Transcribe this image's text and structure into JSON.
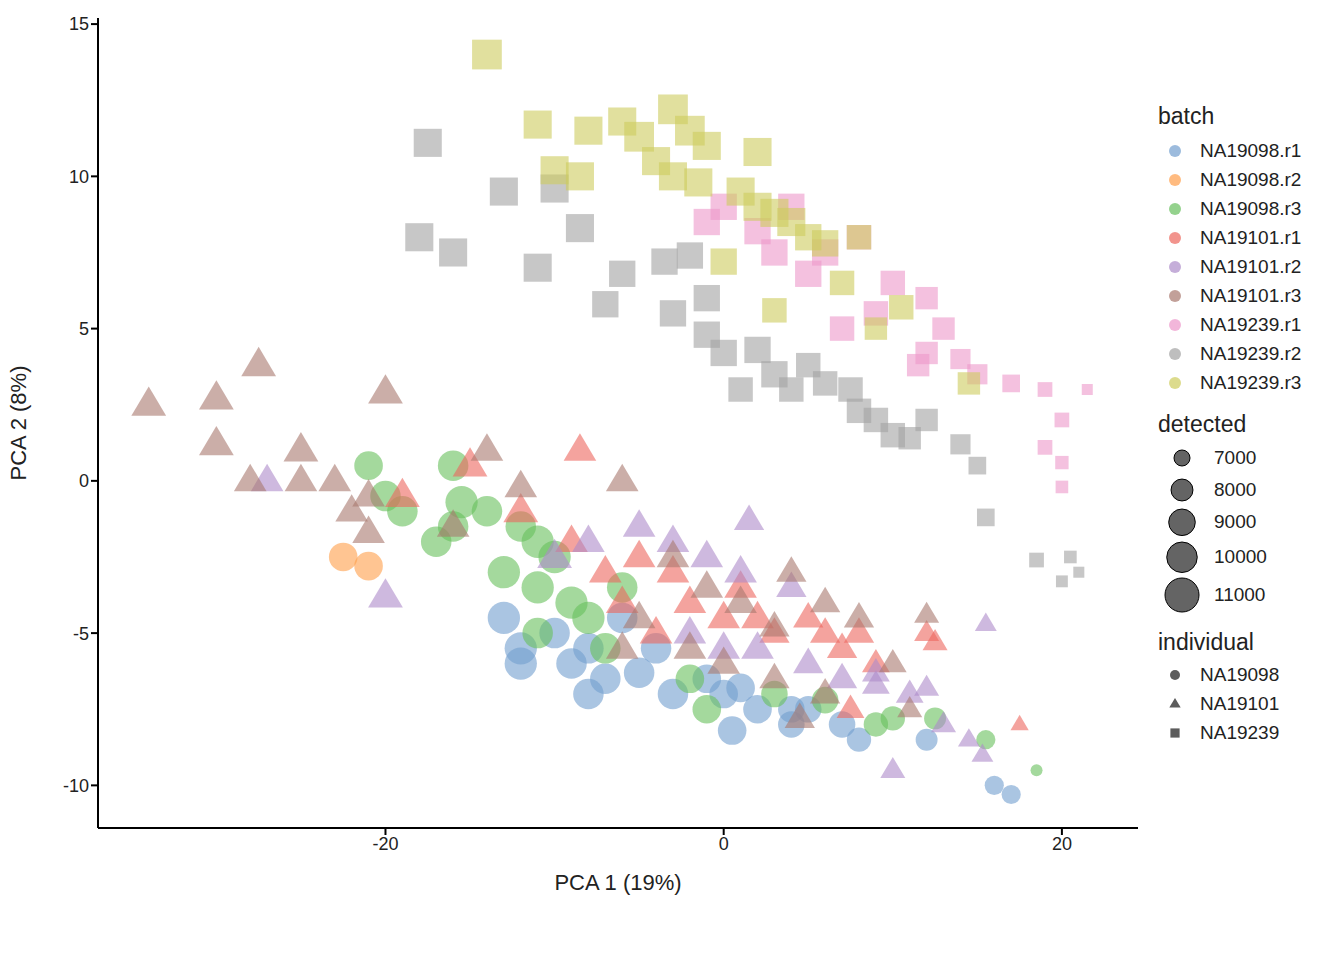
{
  "chart_data": {
    "type": "scatter",
    "x_label": "PCA 1 (19%)",
    "y_label": "PCA 2 (8%)",
    "xlim": [
      -37,
      24.5
    ],
    "ylim": [
      -11.4,
      15.2
    ],
    "xticks": [
      -20,
      0,
      20
    ],
    "yticks": [
      -10,
      -5,
      0,
      5,
      10,
      15
    ],
    "grid": false,
    "legend": "right",
    "legend_title": "batch",
    "series": [
      {
        "name": "NA19098.r1",
        "color": "#729ECE",
        "marker": "circle",
        "x": [
          -13,
          -12,
          -12,
          -10,
          -9,
          -8,
          -8,
          -7,
          -5,
          -3,
          -1,
          0,
          1,
          2,
          0.5,
          4,
          5,
          4,
          7,
          8,
          12,
          16,
          17,
          -6,
          -4
        ],
        "y": [
          -4.5,
          -5.5,
          -6,
          -5,
          -6,
          -5.5,
          -7,
          -6.5,
          -6.3,
          -7,
          -6.5,
          -7,
          -6.8,
          -7.5,
          -8.2,
          -7.5,
          -7.5,
          -8,
          -8,
          -8.5,
          -8.5,
          -10,
          -10.3,
          -4.5,
          -5.5
        ],
        "detected": [
          10500,
          10500,
          10500,
          10000,
          10000,
          10000,
          10000,
          10000,
          10000,
          10000,
          9500,
          9500,
          9500,
          9500,
          9500,
          9000,
          9000,
          9000,
          9000,
          8500,
          8000,
          7500,
          7500,
          10000,
          10000
        ]
      },
      {
        "name": "NA19098.r2",
        "color": "#FF9E4A",
        "marker": "circle",
        "x": [
          -22.5,
          -21
        ],
        "y": [
          -2.5,
          -2.8
        ],
        "detected": [
          9500,
          9500
        ]
      },
      {
        "name": "NA19098.r3",
        "color": "#67BF5C",
        "marker": "circle",
        "x": [
          -17,
          -19,
          -16,
          -16,
          -14,
          -12,
          -11,
          -10,
          -13,
          -11,
          -9,
          -8,
          -6,
          -11,
          -20,
          -15.5,
          -2,
          -1,
          3,
          6,
          9,
          10,
          12.5,
          15.5,
          18.5,
          -21,
          -7
        ],
        "y": [
          -2,
          -1,
          -1.5,
          0.5,
          -1,
          -1.5,
          -2,
          -2.5,
          -3,
          -3.5,
          -4,
          -4.5,
          -3.5,
          -5,
          -0.5,
          -0.7,
          -6.5,
          -7.5,
          -7,
          -7.2,
          -8,
          -7.8,
          -7.8,
          -8.5,
          -9.5,
          0.5,
          -5.5
        ],
        "detected": [
          10000,
          10000,
          10000,
          10000,
          10000,
          10000,
          10500,
          10500,
          10500,
          10500,
          10500,
          10500,
          10000,
          10000,
          10000,
          10500,
          9500,
          9500,
          9000,
          9000,
          8500,
          8500,
          8000,
          7500,
          6500,
          9500,
          10000
        ]
      },
      {
        "name": "NA19101.r1",
        "color": "#ED665D",
        "marker": "triangle",
        "x": [
          -8.5,
          -15,
          -12,
          -9,
          -7,
          -5,
          -3,
          -2,
          0,
          1,
          2,
          3,
          5,
          6,
          7,
          8,
          -4,
          -6,
          9,
          12,
          12.5,
          7.5,
          17.5,
          -19
        ],
        "y": [
          1,
          0.5,
          -1,
          -2,
          -3,
          -2.5,
          -3,
          -4,
          -4.5,
          -3.5,
          -4.5,
          -5,
          -4.5,
          -5,
          -5.5,
          -5,
          -5,
          -4,
          -6,
          -5,
          -5.3,
          -7.5,
          -8,
          -0.5
        ],
        "detected": [
          9500,
          10000,
          10000,
          9500,
          9500,
          9500,
          9500,
          9500,
          9500,
          9500,
          9500,
          9000,
          9000,
          9000,
          9000,
          9000,
          9500,
          9500,
          8500,
          8000,
          8000,
          8500,
          7000,
          10000
        ]
      },
      {
        "name": "NA19101.r2",
        "color": "#AD8BC9",
        "marker": "triangle",
        "x": [
          -27,
          -20,
          -5,
          -3,
          -1,
          1,
          4,
          -8,
          -2,
          0,
          2,
          5,
          7,
          9,
          11,
          12,
          15.5,
          13,
          14.5,
          15.3,
          10,
          9,
          -10,
          1.5
        ],
        "y": [
          0,
          -3.8,
          -1.5,
          -2,
          -2.5,
          -3,
          -3.5,
          -2,
          -5,
          -5.5,
          -5.5,
          -6,
          -6.5,
          -6.3,
          -7,
          -6.8,
          -4.7,
          -8,
          -8.5,
          -9,
          -9.5,
          -6.7,
          -2.5,
          -1.3
        ],
        "detected": [
          9500,
          10000,
          9500,
          9500,
          9500,
          9500,
          9000,
          9500,
          9500,
          9500,
          9500,
          9000,
          9000,
          8500,
          8500,
          8000,
          7500,
          8000,
          7500,
          7500,
          8000,
          8500,
          10000,
          9000
        ]
      },
      {
        "name": "NA19101.r3",
        "color": "#A8786E",
        "marker": "triangle",
        "x": [
          -34,
          -30,
          -27.5,
          -30,
          -20,
          -25,
          -28,
          -25,
          -23,
          -22,
          -21,
          -14,
          -12,
          -16,
          -6,
          -3,
          -1,
          1,
          3,
          4,
          6,
          8,
          -5,
          -2,
          0,
          3,
          6,
          10,
          12,
          11,
          -6,
          -21,
          4.5
        ],
        "y": [
          2.5,
          2.7,
          3.8,
          1.2,
          2.9,
          1,
          0,
          0,
          0,
          -1,
          -0.5,
          1,
          -0.2,
          -1.5,
          0,
          -2.5,
          -3.5,
          -4,
          -4.8,
          -3,
          -4,
          -4.5,
          -4.5,
          -5.5,
          -6,
          -6.5,
          -7,
          -6,
          -4.4,
          -7.5,
          -5.5,
          -1.7,
          -7.8
        ],
        "detected": [
          10000,
          10000,
          10000,
          10000,
          10000,
          10000,
          9500,
          9500,
          9500,
          9500,
          9500,
          9500,
          9500,
          9500,
          9500,
          9500,
          9500,
          9500,
          9000,
          9000,
          9000,
          9000,
          9500,
          9500,
          9500,
          9000,
          9000,
          8500,
          8000,
          8000,
          9500,
          9500,
          9000
        ]
      },
      {
        "name": "NA19239.r1",
        "color": "#ED97CA",
        "marker": "square",
        "x": [
          0,
          2,
          4,
          6,
          8,
          10,
          12,
          13,
          14,
          15,
          17,
          19,
          20,
          19,
          20,
          20,
          21.5,
          11.5,
          7,
          3,
          -1,
          9,
          12,
          5
        ],
        "y": [
          9,
          8.2,
          9,
          7.5,
          8,
          6.5,
          6,
          5,
          4,
          3.5,
          3.2,
          3,
          2,
          1.1,
          0.6,
          -0.2,
          3,
          3.8,
          5,
          7.5,
          8.5,
          5.5,
          4.2,
          6.8
        ],
        "detected": [
          9500,
          9500,
          9500,
          9500,
          9000,
          9000,
          8500,
          8500,
          8000,
          8000,
          7500,
          7000,
          7000,
          7000,
          6800,
          6700,
          6500,
          8500,
          9000,
          9500,
          9500,
          9000,
          8500,
          9500
        ]
      },
      {
        "name": "NA19239.r2",
        "color": "#A2A2A2",
        "marker": "square",
        "x": [
          -17.5,
          -13,
          -10,
          -8.5,
          -18,
          -16,
          -11,
          -6,
          -7,
          -2,
          -1,
          -3,
          -1,
          0,
          2,
          3,
          1,
          5,
          6,
          8,
          9,
          10,
          12,
          11,
          14,
          15,
          15.5,
          18.5,
          20.5,
          20,
          21,
          7.5,
          4,
          -3.5
        ],
        "y": [
          11.1,
          9.5,
          9.6,
          8.3,
          8,
          7.5,
          7,
          6.8,
          5.8,
          7.4,
          6,
          5.5,
          4.8,
          4.2,
          4.3,
          3.5,
          3,
          3.8,
          3.2,
          2.3,
          2,
          1.5,
          2,
          1.4,
          1.2,
          0.5,
          -1.2,
          -2.6,
          -2.5,
          -3.3,
          -3,
          3,
          3,
          7.2
        ],
        "detected": [
          10000,
          10000,
          10000,
          10000,
          10000,
          10000,
          10000,
          9500,
          9500,
          9500,
          9500,
          9500,
          9500,
          9500,
          9500,
          9500,
          9000,
          9000,
          9000,
          9000,
          9000,
          9000,
          8500,
          8500,
          8000,
          7500,
          7500,
          7000,
          6700,
          6600,
          6500,
          9000,
          9000,
          9500
        ]
      },
      {
        "name": "NA19239.r3",
        "color": "#CDCC5D",
        "marker": "square",
        "x": [
          -14,
          -11,
          -8,
          -6,
          -5,
          -3,
          -2,
          -1,
          -4,
          -3,
          -1.5,
          1,
          2,
          3,
          4,
          5,
          6,
          8,
          7,
          9,
          -8.5,
          -10,
          2,
          3,
          0,
          14.5,
          10.5
        ],
        "y": [
          14,
          11.7,
          11.5,
          11.8,
          11.3,
          12.2,
          11.5,
          11,
          10.5,
          10,
          9.8,
          9.5,
          9,
          8.8,
          8.5,
          8,
          7.8,
          8,
          6.5,
          5,
          10,
          10.2,
          10.8,
          5.6,
          7.2,
          3.2,
          5.7
        ],
        "detected": [
          10500,
          10000,
          10000,
          10000,
          10500,
          10500,
          10500,
          10000,
          10000,
          10000,
          10000,
          10000,
          10000,
          10000,
          10000,
          9500,
          9500,
          9000,
          9000,
          8500,
          10000,
          10000,
          10000,
          9000,
          9500,
          8500,
          9000
        ]
      }
    ],
    "size_legend": {
      "title": "detected",
      "values": [
        7000,
        8000,
        9000,
        10000,
        11000
      ]
    },
    "shape_legend": {
      "title": "individual",
      "names": [
        "NA19098",
        "NA19101",
        "NA19239"
      ],
      "markers": [
        "circle",
        "triangle",
        "square"
      ]
    }
  }
}
